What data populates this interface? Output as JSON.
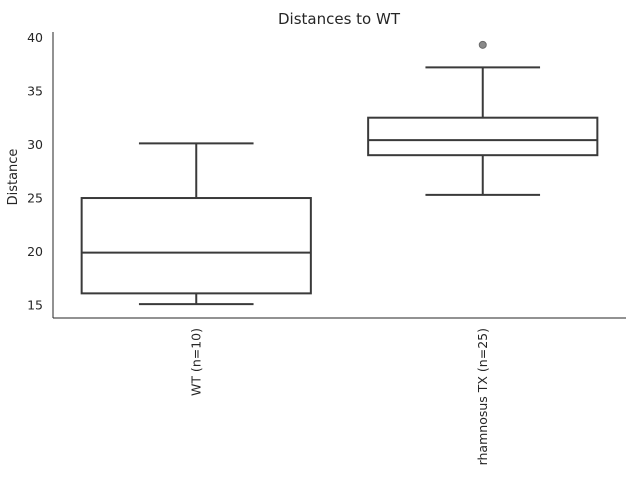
{
  "chart_data": {
    "type": "box",
    "title": "Distances to WT",
    "xlabel": "",
    "ylabel": "Distance",
    "ylim": [
      13.8,
      40.5
    ],
    "yticks": [
      15,
      20,
      25,
      30,
      35,
      40
    ],
    "grid": false,
    "categories": [
      "WT (n=10)",
      "rhamnosus TX (n=25)"
    ],
    "boxes": [
      {
        "category": "WT (n=10)",
        "whislo": 15.1,
        "q1": 16.1,
        "med": 19.9,
        "q3": 25.0,
        "whishi": 30.1,
        "fliers": []
      },
      {
        "category": "rhamnosus TX (n=25)",
        "whislo": 25.3,
        "q1": 29.0,
        "med": 30.4,
        "q3": 32.5,
        "whishi": 37.2,
        "fliers": [
          39.3
        ]
      }
    ]
  }
}
